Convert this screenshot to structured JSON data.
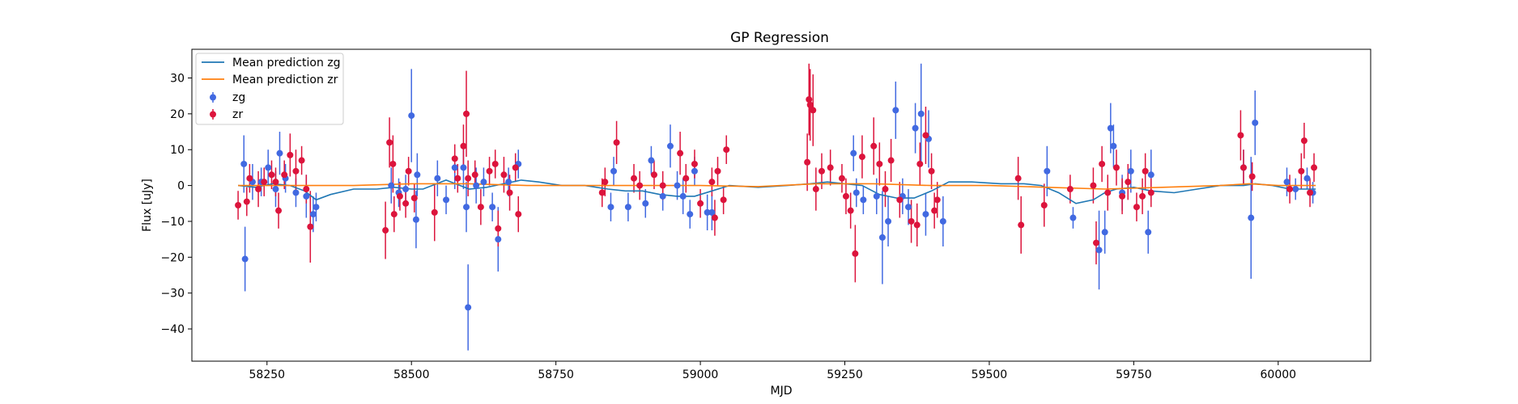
{
  "chart_data": {
    "type": "scatter",
    "title": "GP Regression",
    "xlabel": "MJD",
    "ylabel": "Flux [uJy]",
    "xlim": [
      58120,
      60160
    ],
    "ylim": [
      -49,
      38
    ],
    "xticks": [
      58250,
      58500,
      58750,
      59000,
      59250,
      59500,
      59750,
      60000
    ],
    "yticks": [
      -40,
      -30,
      -20,
      -10,
      0,
      10,
      20,
      30
    ],
    "grid": false,
    "legend_position": "top-left",
    "colors": {
      "zg": "#4169e1",
      "zr": "#dc143c",
      "mean_zg": "#1f77b4",
      "mean_zr": "#ff7f0e"
    },
    "legend": [
      "Mean prediction zg",
      "Mean prediction zr",
      "zg",
      "zr"
    ],
    "series": [
      {
        "name": "zg",
        "kind": "errorbar",
        "points": [
          [
            58210,
            6,
            8
          ],
          [
            58212,
            -20.5,
            9
          ],
          [
            58225,
            1,
            5
          ],
          [
            58240,
            1,
            4
          ],
          [
            58252,
            5,
            5
          ],
          [
            58265,
            -1,
            5
          ],
          [
            58272,
            9,
            6
          ],
          [
            58282,
            2,
            4
          ],
          [
            58300,
            -2,
            4
          ],
          [
            58318,
            -3,
            6
          ],
          [
            58330,
            -8,
            5
          ],
          [
            58335,
            -6,
            4
          ],
          [
            58465,
            0,
            5
          ],
          [
            58478,
            -2,
            4
          ],
          [
            58490,
            -1,
            4
          ],
          [
            58500,
            19.5,
            13
          ],
          [
            58508,
            -9.5,
            8
          ],
          [
            58510,
            3,
            6
          ],
          [
            58545,
            2,
            5
          ],
          [
            58560,
            -4,
            4
          ],
          [
            58575,
            5,
            6
          ],
          [
            58590,
            5,
            6
          ],
          [
            58595,
            -6,
            7
          ],
          [
            58598,
            -34,
            12
          ],
          [
            58612,
            0,
            5
          ],
          [
            58625,
            1,
            4
          ],
          [
            58640,
            -6,
            4
          ],
          [
            58650,
            -15,
            9
          ],
          [
            58668,
            1,
            4
          ],
          [
            58685,
            6,
            4
          ],
          [
            58845,
            -6,
            4
          ],
          [
            58850,
            4,
            4
          ],
          [
            58875,
            -6,
            4
          ],
          [
            58905,
            -5,
            4
          ],
          [
            58915,
            7,
            4
          ],
          [
            58935,
            -3,
            4
          ],
          [
            58948,
            11,
            6
          ],
          [
            58960,
            0,
            4
          ],
          [
            58970,
            -3,
            5
          ],
          [
            58982,
            -8,
            4
          ],
          [
            58990,
            4,
            4
          ],
          [
            59012,
            -7.5,
            5
          ],
          [
            59020,
            -7.5,
            5
          ],
          [
            59265,
            9,
            5
          ],
          [
            59270,
            -2,
            4
          ],
          [
            59282,
            -4,
            4
          ],
          [
            59305,
            -3,
            5
          ],
          [
            59315,
            -14.5,
            13
          ],
          [
            59325,
            -10,
            7
          ],
          [
            59338,
            21,
            8
          ],
          [
            59350,
            -3,
            5
          ],
          [
            59360,
            -6,
            5
          ],
          [
            59372,
            16,
            7
          ],
          [
            59382,
            20,
            14
          ],
          [
            59390,
            -8,
            6
          ],
          [
            59395,
            13,
            8
          ],
          [
            59420,
            -10,
            7
          ],
          [
            59600,
            4,
            7
          ],
          [
            59645,
            -9,
            3
          ],
          [
            59690,
            -18,
            11
          ],
          [
            59700,
            -13,
            6
          ],
          [
            59710,
            16,
            7
          ],
          [
            59715,
            11,
            6
          ],
          [
            59730,
            -2,
            5
          ],
          [
            59745,
            4,
            6
          ],
          [
            59775,
            -13,
            6
          ],
          [
            59780,
            3,
            7
          ],
          [
            59940,
            5,
            5
          ],
          [
            59953,
            -9,
            17
          ],
          [
            59960,
            17.5,
            9
          ],
          [
            60015,
            1,
            4
          ],
          [
            60030,
            -1,
            3
          ],
          [
            60050,
            2,
            3
          ],
          [
            60060,
            -2,
            3
          ]
        ]
      },
      {
        "name": "zr",
        "kind": "errorbar",
        "points": [
          [
            58200,
            -5.5,
            4
          ],
          [
            58215,
            -4.5,
            4
          ],
          [
            58220,
            2,
            4
          ],
          [
            58235,
            -1,
            5
          ],
          [
            58245,
            1,
            4
          ],
          [
            58258,
            3,
            4
          ],
          [
            58265,
            1,
            4
          ],
          [
            58270,
            -7,
            5
          ],
          [
            58280,
            3,
            4
          ],
          [
            58290,
            8.5,
            6
          ],
          [
            58300,
            4,
            6
          ],
          [
            58310,
            7,
            4
          ],
          [
            58318,
            -1,
            4
          ],
          [
            58325,
            -11.5,
            10
          ],
          [
            58455,
            -12.5,
            8
          ],
          [
            58462,
            12,
            7
          ],
          [
            58468,
            6,
            8
          ],
          [
            58470,
            -8,
            5
          ],
          [
            58480,
            -3,
            4
          ],
          [
            58490,
            -5,
            4
          ],
          [
            58495,
            4,
            4
          ],
          [
            58505,
            -3.5,
            4
          ],
          [
            58540,
            -7.5,
            8
          ],
          [
            58575,
            7.5,
            4
          ],
          [
            58580,
            2,
            4
          ],
          [
            58590,
            11,
            6
          ],
          [
            58595,
            20,
            12
          ],
          [
            58598,
            2,
            5
          ],
          [
            58610,
            3,
            4
          ],
          [
            58620,
            -6,
            5
          ],
          [
            58635,
            4,
            4
          ],
          [
            58645,
            6,
            4
          ],
          [
            58650,
            -12,
            5
          ],
          [
            58660,
            3,
            5
          ],
          [
            58670,
            -2,
            5
          ],
          [
            58680,
            5,
            4
          ],
          [
            58685,
            -8,
            5
          ],
          [
            58830,
            -2,
            4
          ],
          [
            58835,
            1,
            4
          ],
          [
            58855,
            12,
            6
          ],
          [
            58885,
            2,
            4
          ],
          [
            58895,
            0,
            4
          ],
          [
            58920,
            3,
            4
          ],
          [
            58935,
            0,
            4
          ],
          [
            58965,
            9,
            6
          ],
          [
            58975,
            2,
            4
          ],
          [
            58990,
            6,
            4
          ],
          [
            59000,
            -5,
            4
          ],
          [
            59020,
            1,
            4
          ],
          [
            59025,
            -9,
            5
          ],
          [
            59030,
            4,
            4
          ],
          [
            59040,
            -4,
            4
          ],
          [
            59045,
            10,
            4
          ],
          [
            59185,
            6.5,
            8
          ],
          [
            59188,
            24,
            10
          ],
          [
            59190,
            22.5,
            10
          ],
          [
            59195,
            21,
            10
          ],
          [
            59200,
            -1,
            6
          ],
          [
            59210,
            4,
            5
          ],
          [
            59225,
            5,
            5
          ],
          [
            59245,
            2,
            4
          ],
          [
            59252,
            -3,
            5
          ],
          [
            59260,
            -7,
            5
          ],
          [
            59268,
            -19,
            8
          ],
          [
            59280,
            8,
            6
          ],
          [
            59300,
            11,
            8
          ],
          [
            59310,
            6,
            6
          ],
          [
            59320,
            -1,
            5
          ],
          [
            59330,
            7,
            6
          ],
          [
            59345,
            -4,
            5
          ],
          [
            59365,
            -10,
            6
          ],
          [
            59375,
            -11,
            6
          ],
          [
            59380,
            6,
            6
          ],
          [
            59390,
            14,
            8
          ],
          [
            59400,
            4,
            5
          ],
          [
            59405,
            -7,
            5
          ],
          [
            59410,
            -4,
            5
          ],
          [
            59550,
            2,
            6
          ],
          [
            59555,
            -11,
            8
          ],
          [
            59595,
            -5.5,
            6
          ],
          [
            59640,
            -1,
            4
          ],
          [
            59680,
            0,
            5
          ],
          [
            59685,
            -16,
            6
          ],
          [
            59695,
            6,
            5
          ],
          [
            59705,
            -2,
            5
          ],
          [
            59720,
            5,
            5
          ],
          [
            59730,
            -3,
            5
          ],
          [
            59740,
            1,
            5
          ],
          [
            59755,
            -6,
            4
          ],
          [
            59765,
            -3,
            5
          ],
          [
            59770,
            4,
            5
          ],
          [
            59780,
            -2,
            4
          ],
          [
            59935,
            14,
            7
          ],
          [
            59940,
            5,
            5
          ],
          [
            59955,
            2.5,
            4
          ],
          [
            60020,
            -1,
            4
          ],
          [
            60040,
            4,
            5
          ],
          [
            60045,
            12.5,
            5
          ],
          [
            60055,
            -2,
            4
          ],
          [
            60062,
            5,
            4
          ]
        ]
      },
      {
        "name": "Mean prediction zg",
        "kind": "line",
        "x": [
          58200,
          58230,
          58260,
          58290,
          58315,
          58335,
          58360,
          58400,
          58440,
          58470,
          58500,
          58520,
          58560,
          58600,
          58630,
          58660,
          58690,
          58720,
          58760,
          58800,
          58840,
          58870,
          58900,
          58930,
          58960,
          58990,
          59020,
          59050,
          59100,
          59150,
          59190,
          59220,
          59250,
          59280,
          59310,
          59340,
          59370,
          59400,
          59430,
          59470,
          59520,
          59560,
          59590,
          59620,
          59650,
          59680,
          59700,
          59720,
          59750,
          59780,
          59820,
          59860,
          59900,
          59940,
          59960,
          59990,
          60020,
          60045,
          60065
        ],
        "y": [
          0,
          -0.5,
          0.5,
          0,
          -1.5,
          -4,
          -2.5,
          -1,
          -1,
          -0.5,
          -1,
          -1,
          1.5,
          -1,
          -0.5,
          0.5,
          1.5,
          1,
          0,
          0,
          -1,
          -1.5,
          -1.5,
          -2.5,
          -3,
          -3,
          -1.5,
          0,
          -0.5,
          0,
          0.5,
          1,
          0.5,
          0,
          -2.5,
          -3.5,
          -3.5,
          -1.5,
          1,
          1,
          0.5,
          0.5,
          0,
          -2,
          -5,
          -4,
          -2,
          -1,
          -0.5,
          -1.5,
          -2,
          -1,
          0,
          0,
          0.5,
          0,
          -1,
          -1,
          -1
        ]
      },
      {
        "name": "Mean prediction zr",
        "kind": "line",
        "x": [
          58200,
          58300,
          58400,
          58500,
          58600,
          58700,
          58800,
          58900,
          59000,
          59100,
          59200,
          59250,
          59300,
          59400,
          59500,
          59600,
          59700,
          59800,
          59900,
          59950,
          60000,
          60065
        ],
        "y": [
          0,
          0,
          0,
          0.5,
          0.5,
          0,
          0,
          0,
          0,
          -0.3,
          0.5,
          0.5,
          0.5,
          0,
          0,
          -0.5,
          -1,
          -0.5,
          0,
          0.5,
          0,
          0
        ]
      }
    ]
  }
}
